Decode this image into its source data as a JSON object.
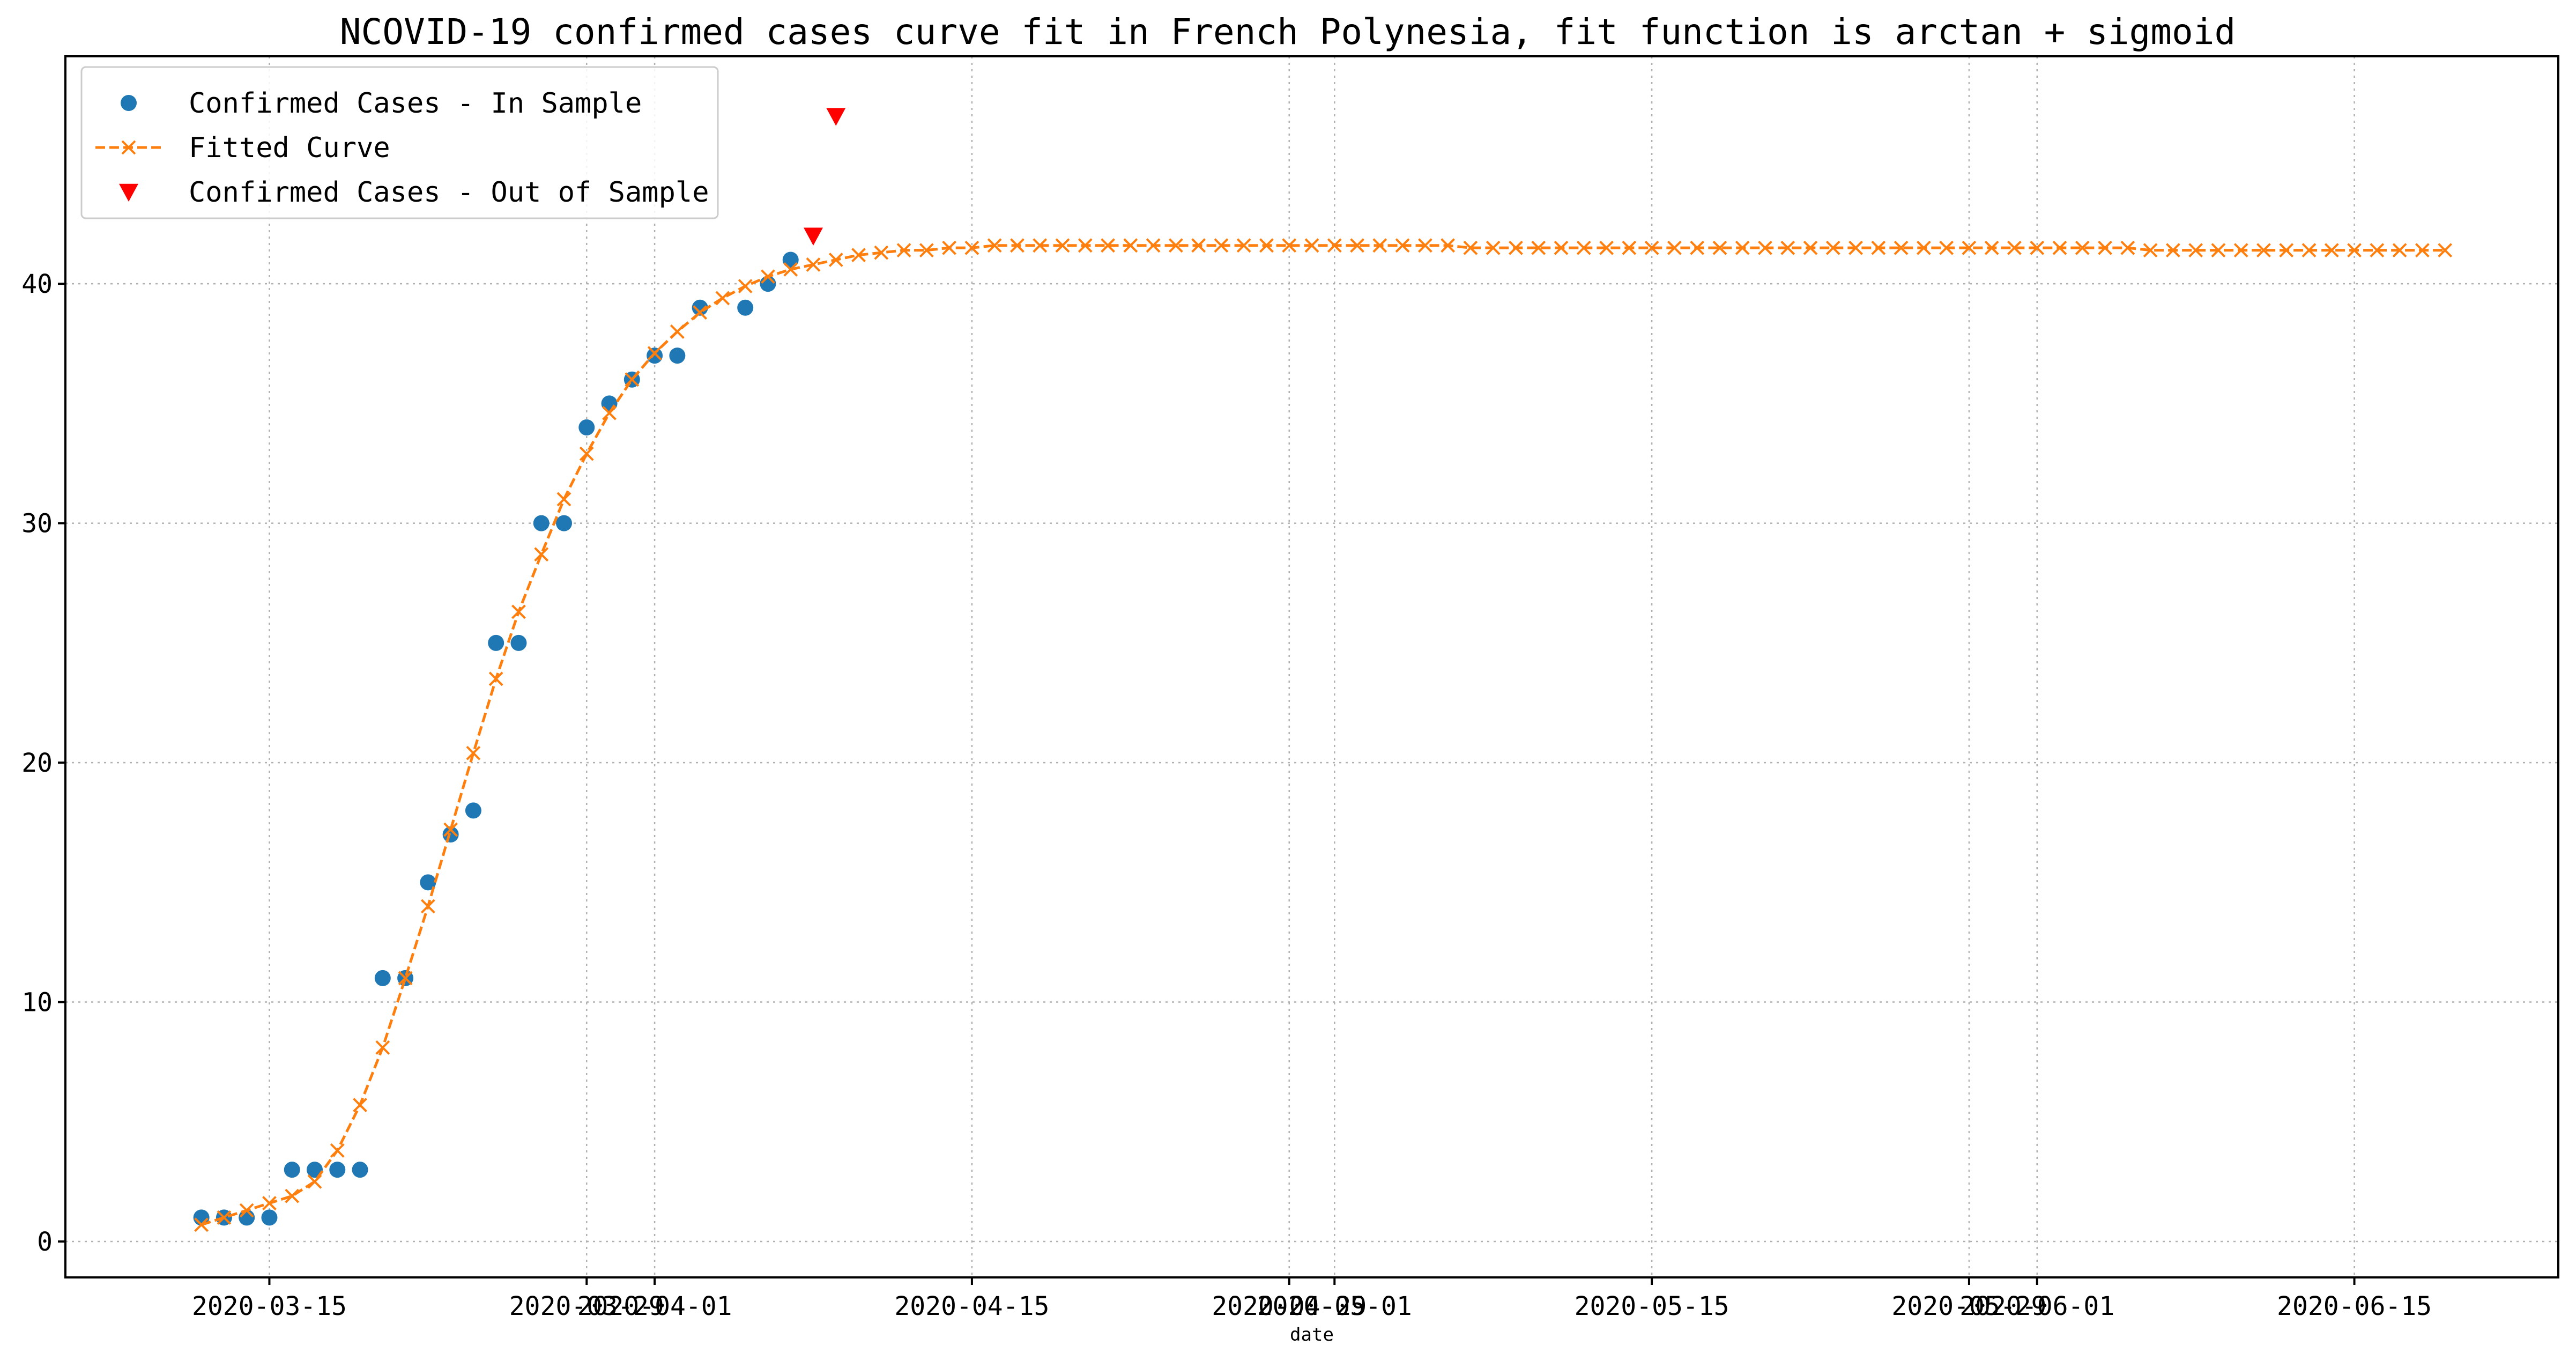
{
  "chart_data": {
    "type": "line",
    "title": "NCOVID-19 confirmed cases curve fit in French Polynesia, fit function is arctan + sigmoid",
    "xlabel": "date",
    "ylabel": "",
    "x_type": "date",
    "xlim": [
      "2020-03-06",
      "2020-06-24"
    ],
    "ylim": [
      -1.5,
      49.5
    ],
    "grid": true,
    "legend_position": "top-left",
    "x_ticks": [
      "2020-03-15",
      "2020-03-29",
      "2020-04-01",
      "2020-04-15",
      "2020-04-29",
      "2020-05-01",
      "2020-05-15",
      "2020-05-29",
      "2020-06-01",
      "2020-06-15"
    ],
    "x_tick_labels": [
      "2020-03-15",
      "2020-03-29",
      "2020-04-01",
      "2020-04-15",
      "2020-04-29",
      "2020-05-01",
      "2020-05-15",
      "2020-05-29",
      "2020-06-01",
      "2020-06-15"
    ],
    "y_ticks": [
      0,
      10,
      20,
      30,
      40
    ],
    "y_tick_labels": [
      "0",
      "10",
      "20",
      "30",
      "40"
    ],
    "series": [
      {
        "name": "Confirmed Cases - In Sample",
        "style": "points",
        "marker": "circle",
        "color": "#1f77b4",
        "x": [
          "2020-03-12",
          "2020-03-13",
          "2020-03-14",
          "2020-03-15",
          "2020-03-16",
          "2020-03-17",
          "2020-03-18",
          "2020-03-19",
          "2020-03-20",
          "2020-03-21",
          "2020-03-22",
          "2020-03-23",
          "2020-03-24",
          "2020-03-25",
          "2020-03-26",
          "2020-03-27",
          "2020-03-28",
          "2020-03-29",
          "2020-03-30",
          "2020-03-31",
          "2020-04-01",
          "2020-04-02",
          "2020-04-03",
          "2020-04-05",
          "2020-04-06",
          "2020-04-07"
        ],
        "y": [
          1,
          1,
          1,
          1,
          3,
          3,
          3,
          3,
          11,
          11,
          15,
          17,
          18,
          25,
          25,
          30,
          30,
          34,
          35,
          36,
          37,
          37,
          39,
          39,
          40,
          41
        ]
      },
      {
        "name": "Fitted Curve",
        "style": "dashed-line",
        "marker": "x",
        "color": "#ff7f0e",
        "x_start": "2020-03-12",
        "x_step_days": 1,
        "y": [
          0.7,
          1.0,
          1.3,
          1.6,
          1.9,
          2.5,
          3.8,
          5.7,
          8.1,
          11.0,
          14.0,
          17.2,
          20.4,
          23.5,
          26.3,
          28.7,
          31.0,
          32.9,
          34.6,
          36.0,
          37.1,
          38.0,
          38.8,
          39.4,
          39.9,
          40.3,
          40.6,
          40.8,
          41.0,
          41.2,
          41.3,
          41.4,
          41.4,
          41.5,
          41.5,
          41.6,
          41.6,
          41.6,
          41.6,
          41.6,
          41.6,
          41.6,
          41.6,
          41.6,
          41.6,
          41.6,
          41.6,
          41.6,
          41.6,
          41.6,
          41.6,
          41.6,
          41.6,
          41.6,
          41.6,
          41.6,
          41.5,
          41.5,
          41.5,
          41.5,
          41.5,
          41.5,
          41.5,
          41.5,
          41.5,
          41.5,
          41.5,
          41.5,
          41.5,
          41.5,
          41.5,
          41.5,
          41.5,
          41.5,
          41.5,
          41.5,
          41.5,
          41.5,
          41.5,
          41.5,
          41.5,
          41.5,
          41.5,
          41.5,
          41.5,
          41.5,
          41.4,
          41.4,
          41.4,
          41.4,
          41.4,
          41.4,
          41.4,
          41.4,
          41.4,
          41.4,
          41.4,
          41.4,
          41.4,
          41.4
        ]
      },
      {
        "name": "Confirmed Cases - Out of Sample",
        "style": "points",
        "marker": "triangle-down",
        "color": "#ff0000",
        "x": [
          "2020-04-08",
          "2020-04-09"
        ],
        "y": [
          42,
          47
        ]
      }
    ]
  }
}
